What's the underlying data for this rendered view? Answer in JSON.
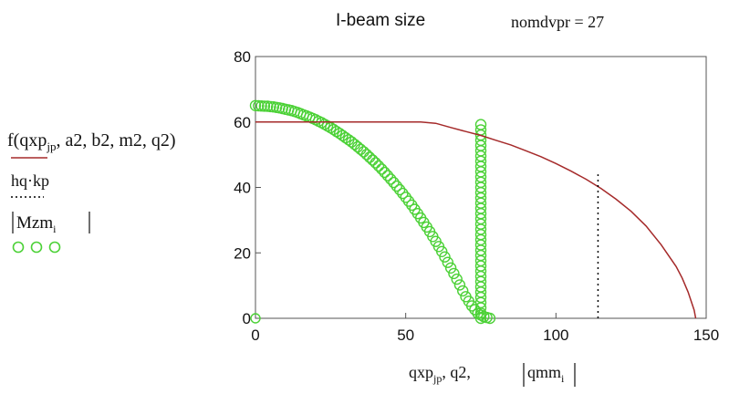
{
  "header": {
    "title": "I-beam size",
    "param": "nomdvpr = 27"
  },
  "legend": {
    "entries": [
      {
        "base": "f",
        "open": "(qxp",
        "sub": "jp",
        "tail": ", a2, b2, m2, q2)",
        "line_style": "solid",
        "color": "#a52a2a"
      },
      {
        "label": "hq·kp",
        "line_style": "dotted",
        "color": "#000000"
      },
      {
        "label": "Mzm",
        "sub": "i",
        "line_style": "circles",
        "color": "#4cd137"
      }
    ]
  },
  "xaxis": {
    "label_main": "qxp",
    "label_sub": "jp",
    "label_rest": ", q2, ",
    "label_abs": "qmm",
    "label_abs_sub": "i"
  },
  "chart_data": {
    "type": "line",
    "xlim": [
      0,
      150
    ],
    "ylim": [
      0,
      80
    ],
    "x_ticks": [
      "0",
      "50",
      "100",
      "150"
    ],
    "y_ticks": [
      "0",
      "20",
      "40",
      "60",
      "80"
    ],
    "grid": false,
    "series": [
      {
        "name": "f(qxp_jp, a2, b2, m2, q2)",
        "style": "line",
        "color": "#a52a2a",
        "points": [
          [
            0,
            60
          ],
          [
            10,
            60
          ],
          [
            20,
            60
          ],
          [
            30,
            60
          ],
          [
            40,
            60
          ],
          [
            50,
            60
          ],
          [
            55,
            60
          ],
          [
            60,
            59.6
          ],
          [
            65,
            58.3
          ],
          [
            70,
            57.1
          ],
          [
            75,
            55.9
          ],
          [
            80,
            54.4
          ],
          [
            85,
            53.0
          ],
          [
            90,
            51.2
          ],
          [
            95,
            49.4
          ],
          [
            100,
            47.3
          ],
          [
            105,
            45.0
          ],
          [
            110,
            42.5
          ],
          [
            115,
            39.7
          ],
          [
            120,
            36.4
          ],
          [
            125,
            32.7
          ],
          [
            130,
            28.2
          ],
          [
            135,
            22.5
          ],
          [
            140,
            15.8
          ],
          [
            142,
            12.3
          ],
          [
            144,
            8.0
          ],
          [
            146,
            2.5
          ],
          [
            146.5,
            0
          ]
        ]
      },
      {
        "name": "hq·kp",
        "style": "dotted",
        "color": "#000000",
        "points": [
          [
            114,
            0
          ],
          [
            114,
            44
          ]
        ]
      },
      {
        "name": "|Mzm_i|",
        "style": "circles",
        "color": "#4cd137",
        "curve_points": [
          [
            0,
            65
          ],
          [
            2,
            64.9
          ],
          [
            4,
            64.8
          ],
          [
            6,
            64.6
          ],
          [
            8,
            64.3
          ],
          [
            10,
            63.9
          ],
          [
            12,
            63.5
          ],
          [
            14,
            62.9
          ],
          [
            16,
            62.2
          ],
          [
            18,
            61.5
          ],
          [
            20,
            60.7
          ],
          [
            22,
            59.8
          ],
          [
            24,
            58.8
          ],
          [
            26,
            57.7
          ],
          [
            28,
            56.5
          ],
          [
            30,
            55.2
          ],
          [
            32,
            53.9
          ],
          [
            34,
            52.4
          ],
          [
            36,
            50.9
          ],
          [
            38,
            49.2
          ],
          [
            40,
            47.5
          ],
          [
            42,
            45.6
          ],
          [
            44,
            43.6
          ],
          [
            46,
            41.5
          ],
          [
            48,
            39.3
          ],
          [
            50,
            37
          ],
          [
            52,
            34.6
          ],
          [
            54,
            32
          ],
          [
            56,
            29.3
          ],
          [
            58,
            26.5
          ],
          [
            60,
            23.5
          ],
          [
            62,
            20.4
          ],
          [
            64,
            17.1
          ],
          [
            66,
            13.7
          ],
          [
            68,
            10.2
          ],
          [
            70,
            6.6
          ],
          [
            72,
            3.8
          ],
          [
            74,
            1.5
          ],
          [
            76,
            0.5
          ],
          [
            78,
            0
          ]
        ],
        "vertical_x": 75,
        "vertical_y_range": [
          0,
          60
        ]
      }
    ]
  }
}
